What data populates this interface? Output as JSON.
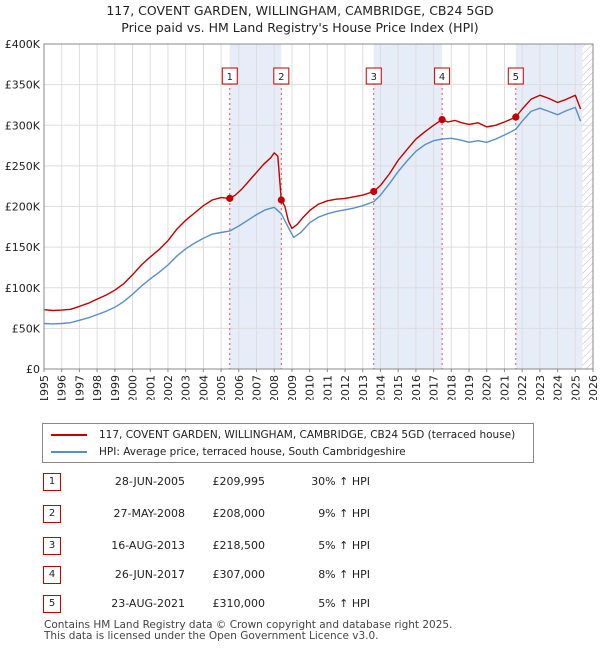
{
  "title_line1": "117, COVENT GARDEN, WILLINGHAM, CAMBRIDGE, CB24 5GD",
  "title_line2": "Price paid vs. HM Land Registry's House Price Index (HPI)",
  "chart_data": {
    "type": "line",
    "title": "117, COVENT GARDEN, WILLINGHAM, CAMBRIDGE, CB24 5GD — Price paid vs. HM Land Registry's House Price Index (HPI)",
    "xlim": [
      1995,
      2026
    ],
    "ylim": [
      0,
      400000
    ],
    "x_ticks": [
      "1995",
      "1996",
      "1997",
      "1998",
      "1999",
      "2000",
      "2001",
      "2002",
      "2003",
      "2004",
      "2005",
      "2006",
      "2007",
      "2008",
      "2009",
      "2010",
      "2011",
      "2012",
      "2013",
      "2014",
      "2015",
      "2016",
      "2017",
      "2018",
      "2019",
      "2020",
      "2021",
      "2022",
      "2023",
      "2024",
      "2025",
      "2026"
    ],
    "y_ticks": [
      {
        "value": 0,
        "label": "£0"
      },
      {
        "value": 50000,
        "label": "£50K"
      },
      {
        "value": 100000,
        "label": "£100K"
      },
      {
        "value": 150000,
        "label": "£150K"
      },
      {
        "value": 200000,
        "label": "£200K"
      },
      {
        "value": 250000,
        "label": "£250K"
      },
      {
        "value": 300000,
        "label": "£300K"
      },
      {
        "value": 350000,
        "label": "£350K"
      },
      {
        "value": 400000,
        "label": "£400K"
      }
    ],
    "future_hatch_from": 2025.4,
    "sale_bands": [
      [
        2005.49,
        2008.4
      ],
      [
        2013.62,
        2017.48
      ],
      [
        2021.64,
        2025.4
      ]
    ],
    "series": [
      {
        "name": "117, COVENT GARDEN, WILLINGHAM, CAMBRIDGE, CB24 5GD (terraced house)",
        "color": "#c00000",
        "points": [
          [
            1995.0,
            73000
          ],
          [
            1995.5,
            72000
          ],
          [
            1996.0,
            72500
          ],
          [
            1996.5,
            73500
          ],
          [
            1997.0,
            77000
          ],
          [
            1997.5,
            81000
          ],
          [
            1998.0,
            86000
          ],
          [
            1998.5,
            91000
          ],
          [
            1999.0,
            97000
          ],
          [
            1999.5,
            105000
          ],
          [
            2000.0,
            116000
          ],
          [
            2000.5,
            128000
          ],
          [
            2001.0,
            138000
          ],
          [
            2001.5,
            147000
          ],
          [
            2002.0,
            158000
          ],
          [
            2002.5,
            172000
          ],
          [
            2003.0,
            183000
          ],
          [
            2003.5,
            192000
          ],
          [
            2004.0,
            201000
          ],
          [
            2004.5,
            208000
          ],
          [
            2005.0,
            211000
          ],
          [
            2005.49,
            209995
          ],
          [
            2005.8,
            214000
          ],
          [
            2006.2,
            222000
          ],
          [
            2006.6,
            232000
          ],
          [
            2007.0,
            242000
          ],
          [
            2007.4,
            252000
          ],
          [
            2007.8,
            260000
          ],
          [
            2008.0,
            266000
          ],
          [
            2008.2,
            262000
          ],
          [
            2008.4,
            208000
          ],
          [
            2008.6,
            200000
          ],
          [
            2008.8,
            182000
          ],
          [
            2009.0,
            173000
          ],
          [
            2009.3,
            178000
          ],
          [
            2009.6,
            186000
          ],
          [
            2010.0,
            195000
          ],
          [
            2010.5,
            203000
          ],
          [
            2011.0,
            207000
          ],
          [
            2011.5,
            209000
          ],
          [
            2012.0,
            210000
          ],
          [
            2012.5,
            212000
          ],
          [
            2013.0,
            214000
          ],
          [
            2013.62,
            218500
          ],
          [
            2014.0,
            226000
          ],
          [
            2014.5,
            240000
          ],
          [
            2015.0,
            257000
          ],
          [
            2015.5,
            270000
          ],
          [
            2016.0,
            283000
          ],
          [
            2016.5,
            292000
          ],
          [
            2017.0,
            300000
          ],
          [
            2017.48,
            307000
          ],
          [
            2017.8,
            304000
          ],
          [
            2018.2,
            306000
          ],
          [
            2018.6,
            303000
          ],
          [
            2019.0,
            301000
          ],
          [
            2019.5,
            303000
          ],
          [
            2020.0,
            298000
          ],
          [
            2020.5,
            300000
          ],
          [
            2021.0,
            304000
          ],
          [
            2021.64,
            310000
          ],
          [
            2022.0,
            320000
          ],
          [
            2022.5,
            332000
          ],
          [
            2023.0,
            337000
          ],
          [
            2023.5,
            333000
          ],
          [
            2024.0,
            328000
          ],
          [
            2024.5,
            332000
          ],
          [
            2025.0,
            337000
          ],
          [
            2025.3,
            320000
          ]
        ]
      },
      {
        "name": "HPI: Average price, terraced house, South Cambridgeshire",
        "color": "#5b8ec4",
        "points": [
          [
            1995.0,
            56000
          ],
          [
            1995.5,
            55500
          ],
          [
            1996.0,
            56000
          ],
          [
            1996.5,
            57000
          ],
          [
            1997.0,
            60000
          ],
          [
            1997.5,
            63000
          ],
          [
            1998.0,
            67000
          ],
          [
            1998.5,
            71000
          ],
          [
            1999.0,
            76000
          ],
          [
            1999.5,
            83000
          ],
          [
            2000.0,
            92000
          ],
          [
            2000.5,
            102000
          ],
          [
            2001.0,
            111000
          ],
          [
            2001.5,
            119000
          ],
          [
            2002.0,
            128000
          ],
          [
            2002.5,
            139000
          ],
          [
            2003.0,
            148000
          ],
          [
            2003.5,
            155000
          ],
          [
            2004.0,
            161000
          ],
          [
            2004.5,
            166000
          ],
          [
            2005.0,
            168000
          ],
          [
            2005.5,
            170000
          ],
          [
            2006.0,
            176000
          ],
          [
            2006.5,
            183000
          ],
          [
            2007.0,
            190000
          ],
          [
            2007.5,
            196000
          ],
          [
            2008.0,
            199000
          ],
          [
            2008.4,
            191000
          ],
          [
            2008.8,
            174000
          ],
          [
            2009.1,
            162000
          ],
          [
            2009.5,
            168000
          ],
          [
            2010.0,
            180000
          ],
          [
            2010.5,
            187000
          ],
          [
            2011.0,
            191000
          ],
          [
            2011.5,
            194000
          ],
          [
            2012.0,
            196000
          ],
          [
            2012.5,
            198000
          ],
          [
            2013.0,
            201000
          ],
          [
            2013.62,
            206000
          ],
          [
            2014.0,
            214000
          ],
          [
            2014.5,
            228000
          ],
          [
            2015.0,
            243000
          ],
          [
            2015.5,
            256000
          ],
          [
            2016.0,
            268000
          ],
          [
            2016.5,
            276000
          ],
          [
            2017.0,
            281000
          ],
          [
            2017.48,
            283000
          ],
          [
            2018.0,
            284000
          ],
          [
            2018.5,
            282000
          ],
          [
            2019.0,
            279000
          ],
          [
            2019.5,
            281000
          ],
          [
            2020.0,
            279000
          ],
          [
            2020.5,
            283000
          ],
          [
            2021.0,
            288000
          ],
          [
            2021.64,
            295000
          ],
          [
            2022.0,
            305000
          ],
          [
            2022.5,
            317000
          ],
          [
            2023.0,
            321000
          ],
          [
            2023.5,
            317000
          ],
          [
            2024.0,
            313000
          ],
          [
            2024.5,
            318000
          ],
          [
            2025.0,
            322000
          ],
          [
            2025.3,
            305000
          ]
        ]
      }
    ],
    "sales": [
      {
        "n": "1",
        "x": 2005.49,
        "value": 209995
      },
      {
        "n": "2",
        "x": 2008.4,
        "value": 208000
      },
      {
        "n": "3",
        "x": 2013.62,
        "value": 218500
      },
      {
        "n": "4",
        "x": 2017.48,
        "value": 307000
      },
      {
        "n": "5",
        "x": 2021.64,
        "value": 310000
      }
    ]
  },
  "legend": {
    "property_label": "117, COVENT GARDEN, WILLINGHAM, CAMBRIDGE, CB24 5GD (terraced house)",
    "hpi_label": "HPI: Average price, terraced house, South Cambridgeshire"
  },
  "sales_table": [
    {
      "n": "1",
      "date": "28-JUN-2005",
      "price": "£209,995",
      "hpi": "30% ↑ HPI"
    },
    {
      "n": "2",
      "date": "27-MAY-2008",
      "price": "£208,000",
      "hpi": "9% ↑ HPI"
    },
    {
      "n": "3",
      "date": "16-AUG-2013",
      "price": "£218,500",
      "hpi": "5% ↑ HPI"
    },
    {
      "n": "4",
      "date": "26-JUN-2017",
      "price": "£307,000",
      "hpi": "8% ↑ HPI"
    },
    {
      "n": "5",
      "date": "23-AUG-2021",
      "price": "£310,000",
      "hpi": "5% ↑ HPI"
    }
  ],
  "footer_line1": "Contains HM Land Registry data © Crown copyright and database right 2025.",
  "footer_line2": "This data is licensed under the Open Government Licence v3.0."
}
